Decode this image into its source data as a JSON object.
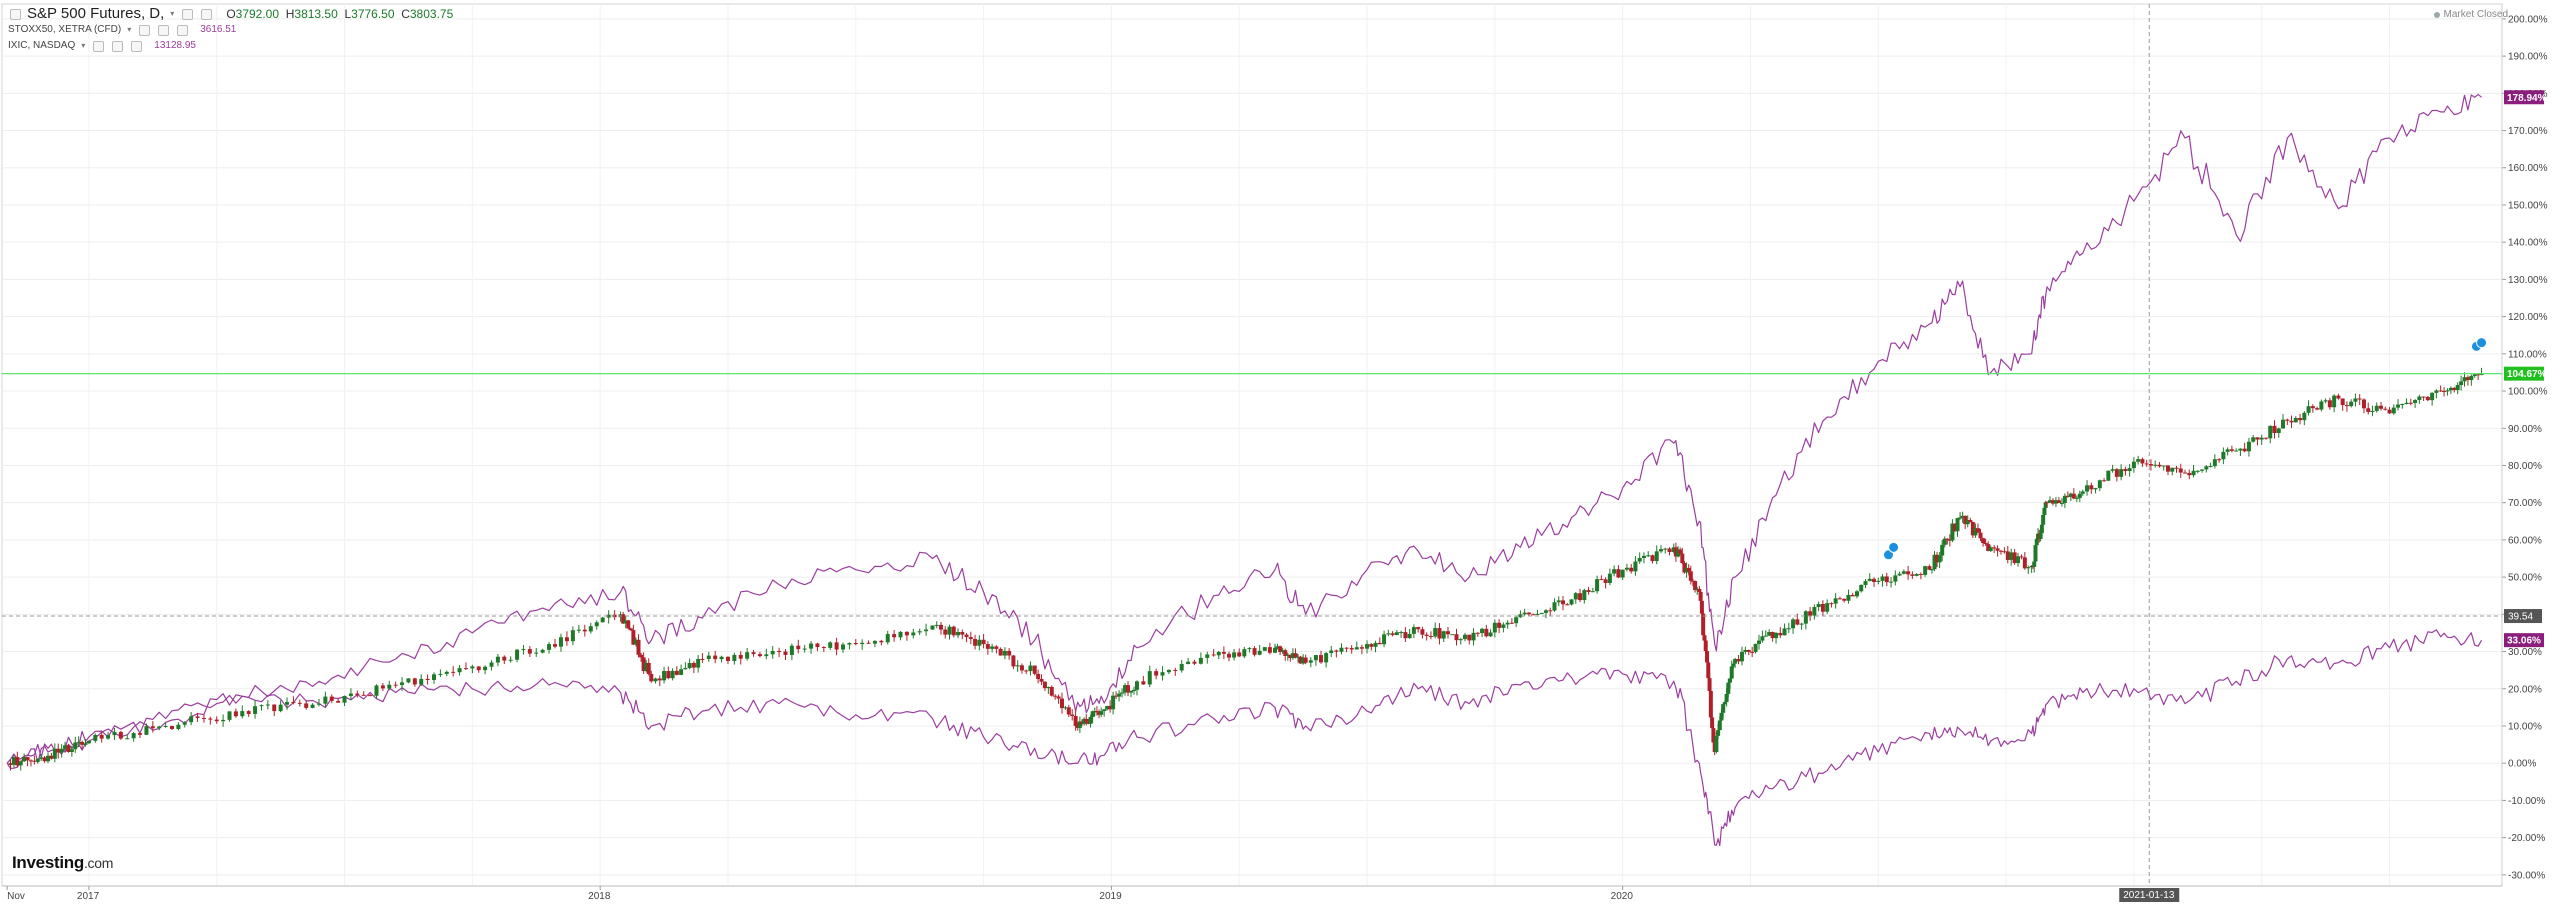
{
  "legend": {
    "main": {
      "title": "S&P 500 Futures, D,",
      "open_label": "O",
      "open": "3792.00",
      "high_label": "H",
      "high": "3813.50",
      "low_label": "L",
      "low": "3776.50",
      "close_label": "C",
      "close": "3803.75"
    },
    "stoxx": {
      "label": "STOXX50, XETRA (CFD)",
      "value": "3616.51"
    },
    "ixic": {
      "label": "IXIC, NASDAQ",
      "value": "13128.95"
    }
  },
  "market_status": "Market Closed",
  "logo": {
    "main": "Investing",
    "suffix": ".com"
  },
  "colors": {
    "up": "#1e7a28",
    "down": "#b0202a",
    "compare": "#9b3d9e",
    "price_line": "#5ce66a",
    "tag_main": "#20c020",
    "tag_compare": "#8b1e7c",
    "crosshair": "#999999",
    "event_icon": "#1b8fe0"
  },
  "chart_data": {
    "type": "line",
    "title": "S&P 500 Futures, D,",
    "y_scale": "percent change",
    "ylim": [
      -33,
      204
    ],
    "y_ticks": [
      "200.00%",
      "190.00%",
      "180.00%",
      "170.00%",
      "160.00%",
      "150.00%",
      "140.00%",
      "130.00%",
      "120.00%",
      "110.00%",
      "100.00%",
      "90.00%",
      "80.00%",
      "70.00%",
      "60.00%",
      "50.00%",
      "40.00%",
      "30.00%",
      "20.00%",
      "10.00%",
      "0.00%",
      "-10.00%",
      "-20.00%",
      "-30.00%"
    ],
    "y_tick_values": [
      200,
      190,
      180,
      170,
      160,
      150,
      140,
      130,
      120,
      110,
      100,
      90,
      80,
      70,
      60,
      50,
      40,
      30,
      20,
      10,
      0,
      -10,
      -20,
      -30
    ],
    "x_range": [
      2016.83,
      2021.72
    ],
    "x_ticks": [
      {
        "label": "Nov",
        "x": 2016.84
      },
      {
        "label": "2017",
        "x": 2017.0
      },
      {
        "label": "2018",
        "x": 2018.0
      },
      {
        "label": "2019",
        "x": 2019.0
      },
      {
        "label": "2020",
        "x": 2020.0
      }
    ],
    "crosshair": {
      "x": 2021.03,
      "x_label": "2021-01-13",
      "y": 39.54,
      "y_label": "39.54"
    },
    "price_line": {
      "y": 104.67
    },
    "tags": [
      {
        "series": "S&P 500 Futures",
        "label": "104.67%",
        "y": 104.67
      },
      {
        "series": "IXIC",
        "label": "178.94%",
        "y": 178.94
      },
      {
        "series": "STOXX50",
        "label": "33.06%",
        "y": 33.06
      }
    ],
    "series": [
      {
        "name": "S&P 500 Futures",
        "style": "candles",
        "x": [
          2016.84,
          2016.92,
          2017.0,
          2017.15,
          2017.3,
          2017.45,
          2017.6,
          2017.75,
          2017.9,
          2018.04,
          2018.1,
          2018.2,
          2018.35,
          2018.5,
          2018.65,
          2018.75,
          2018.85,
          2018.93,
          2018.98,
          2019.05,
          2019.2,
          2019.32,
          2019.38,
          2019.5,
          2019.6,
          2019.7,
          2019.8,
          2019.9,
          2020.0,
          2020.1,
          2020.15,
          2020.18,
          2020.22,
          2020.3,
          2020.4,
          2020.5,
          2020.6,
          2020.66,
          2020.72,
          2020.8,
          2020.83,
          2020.9,
          2021.0,
          2021.1,
          2021.2,
          2021.3,
          2021.4,
          2021.5,
          2021.6,
          2021.68
        ],
        "values": [
          0,
          2,
          6,
          10,
          14,
          16,
          21,
          26,
          32,
          40,
          22,
          28,
          30,
          32,
          37,
          32,
          24,
          10,
          14,
          22,
          29,
          31,
          27,
          32,
          36,
          33,
          40,
          44,
          52,
          58,
          46,
          3,
          28,
          35,
          43,
          49,
          52,
          66,
          58,
          53,
          70,
          73,
          81,
          78,
          84,
          92,
          98,
          94,
          100,
          104.67
        ]
      },
      {
        "name": "IXIC",
        "style": "line",
        "x": [
          2016.84,
          2016.92,
          2017.0,
          2017.15,
          2017.3,
          2017.45,
          2017.6,
          2017.75,
          2017.9,
          2018.04,
          2018.1,
          2018.2,
          2018.35,
          2018.5,
          2018.65,
          2018.75,
          2018.85,
          2018.93,
          2018.98,
          2019.05,
          2019.2,
          2019.32,
          2019.38,
          2019.5,
          2019.6,
          2019.7,
          2019.8,
          2019.9,
          2020.0,
          2020.1,
          2020.15,
          2020.18,
          2020.22,
          2020.3,
          2020.4,
          2020.5,
          2020.6,
          2020.66,
          2020.72,
          2020.8,
          2020.83,
          2020.9,
          2021.0,
          2021.1,
          2021.2,
          2021.3,
          2021.4,
          2021.5,
          2021.6,
          2021.68
        ],
        "values": [
          0,
          3,
          7,
          12,
          18,
          22,
          28,
          35,
          41,
          46,
          33,
          39,
          48,
          52,
          55,
          46,
          33,
          14,
          18,
          31,
          45,
          52,
          40,
          52,
          57,
          50,
          58,
          66,
          74,
          86,
          65,
          32,
          50,
          72,
          93,
          108,
          118,
          128,
          105,
          110,
          128,
          137,
          151,
          168,
          142,
          168,
          149,
          168,
          175,
          178.94
        ]
      },
      {
        "name": "STOXX50",
        "style": "line",
        "x": [
          2016.84,
          2016.92,
          2017.0,
          2017.15,
          2017.3,
          2017.45,
          2017.6,
          2017.75,
          2017.9,
          2018.04,
          2018.1,
          2018.2,
          2018.35,
          2018.5,
          2018.65,
          2018.75,
          2018.85,
          2018.93,
          2018.98,
          2019.05,
          2019.2,
          2019.32,
          2019.38,
          2019.5,
          2019.6,
          2019.7,
          2019.8,
          2019.9,
          2020.0,
          2020.1,
          2020.15,
          2020.18,
          2020.22,
          2020.3,
          2020.4,
          2020.5,
          2020.6,
          2020.66,
          2020.72,
          2020.8,
          2020.83,
          2020.9,
          2021.0,
          2021.1,
          2021.2,
          2021.3,
          2021.4,
          2021.5,
          2021.6,
          2021.68
        ],
        "values": [
          0,
          4,
          6,
          11,
          18,
          16,
          19,
          20,
          21,
          19,
          10,
          14,
          16,
          13,
          12,
          7,
          4,
          0,
          2,
          7,
          12,
          15,
          10,
          14,
          20,
          16,
          21,
          23,
          24,
          22,
          0,
          -22,
          -12,
          -6,
          -2,
          3,
          8,
          9,
          6,
          8,
          16,
          19,
          20,
          16,
          22,
          28,
          27,
          31,
          34,
          33.06
        ]
      }
    ]
  }
}
